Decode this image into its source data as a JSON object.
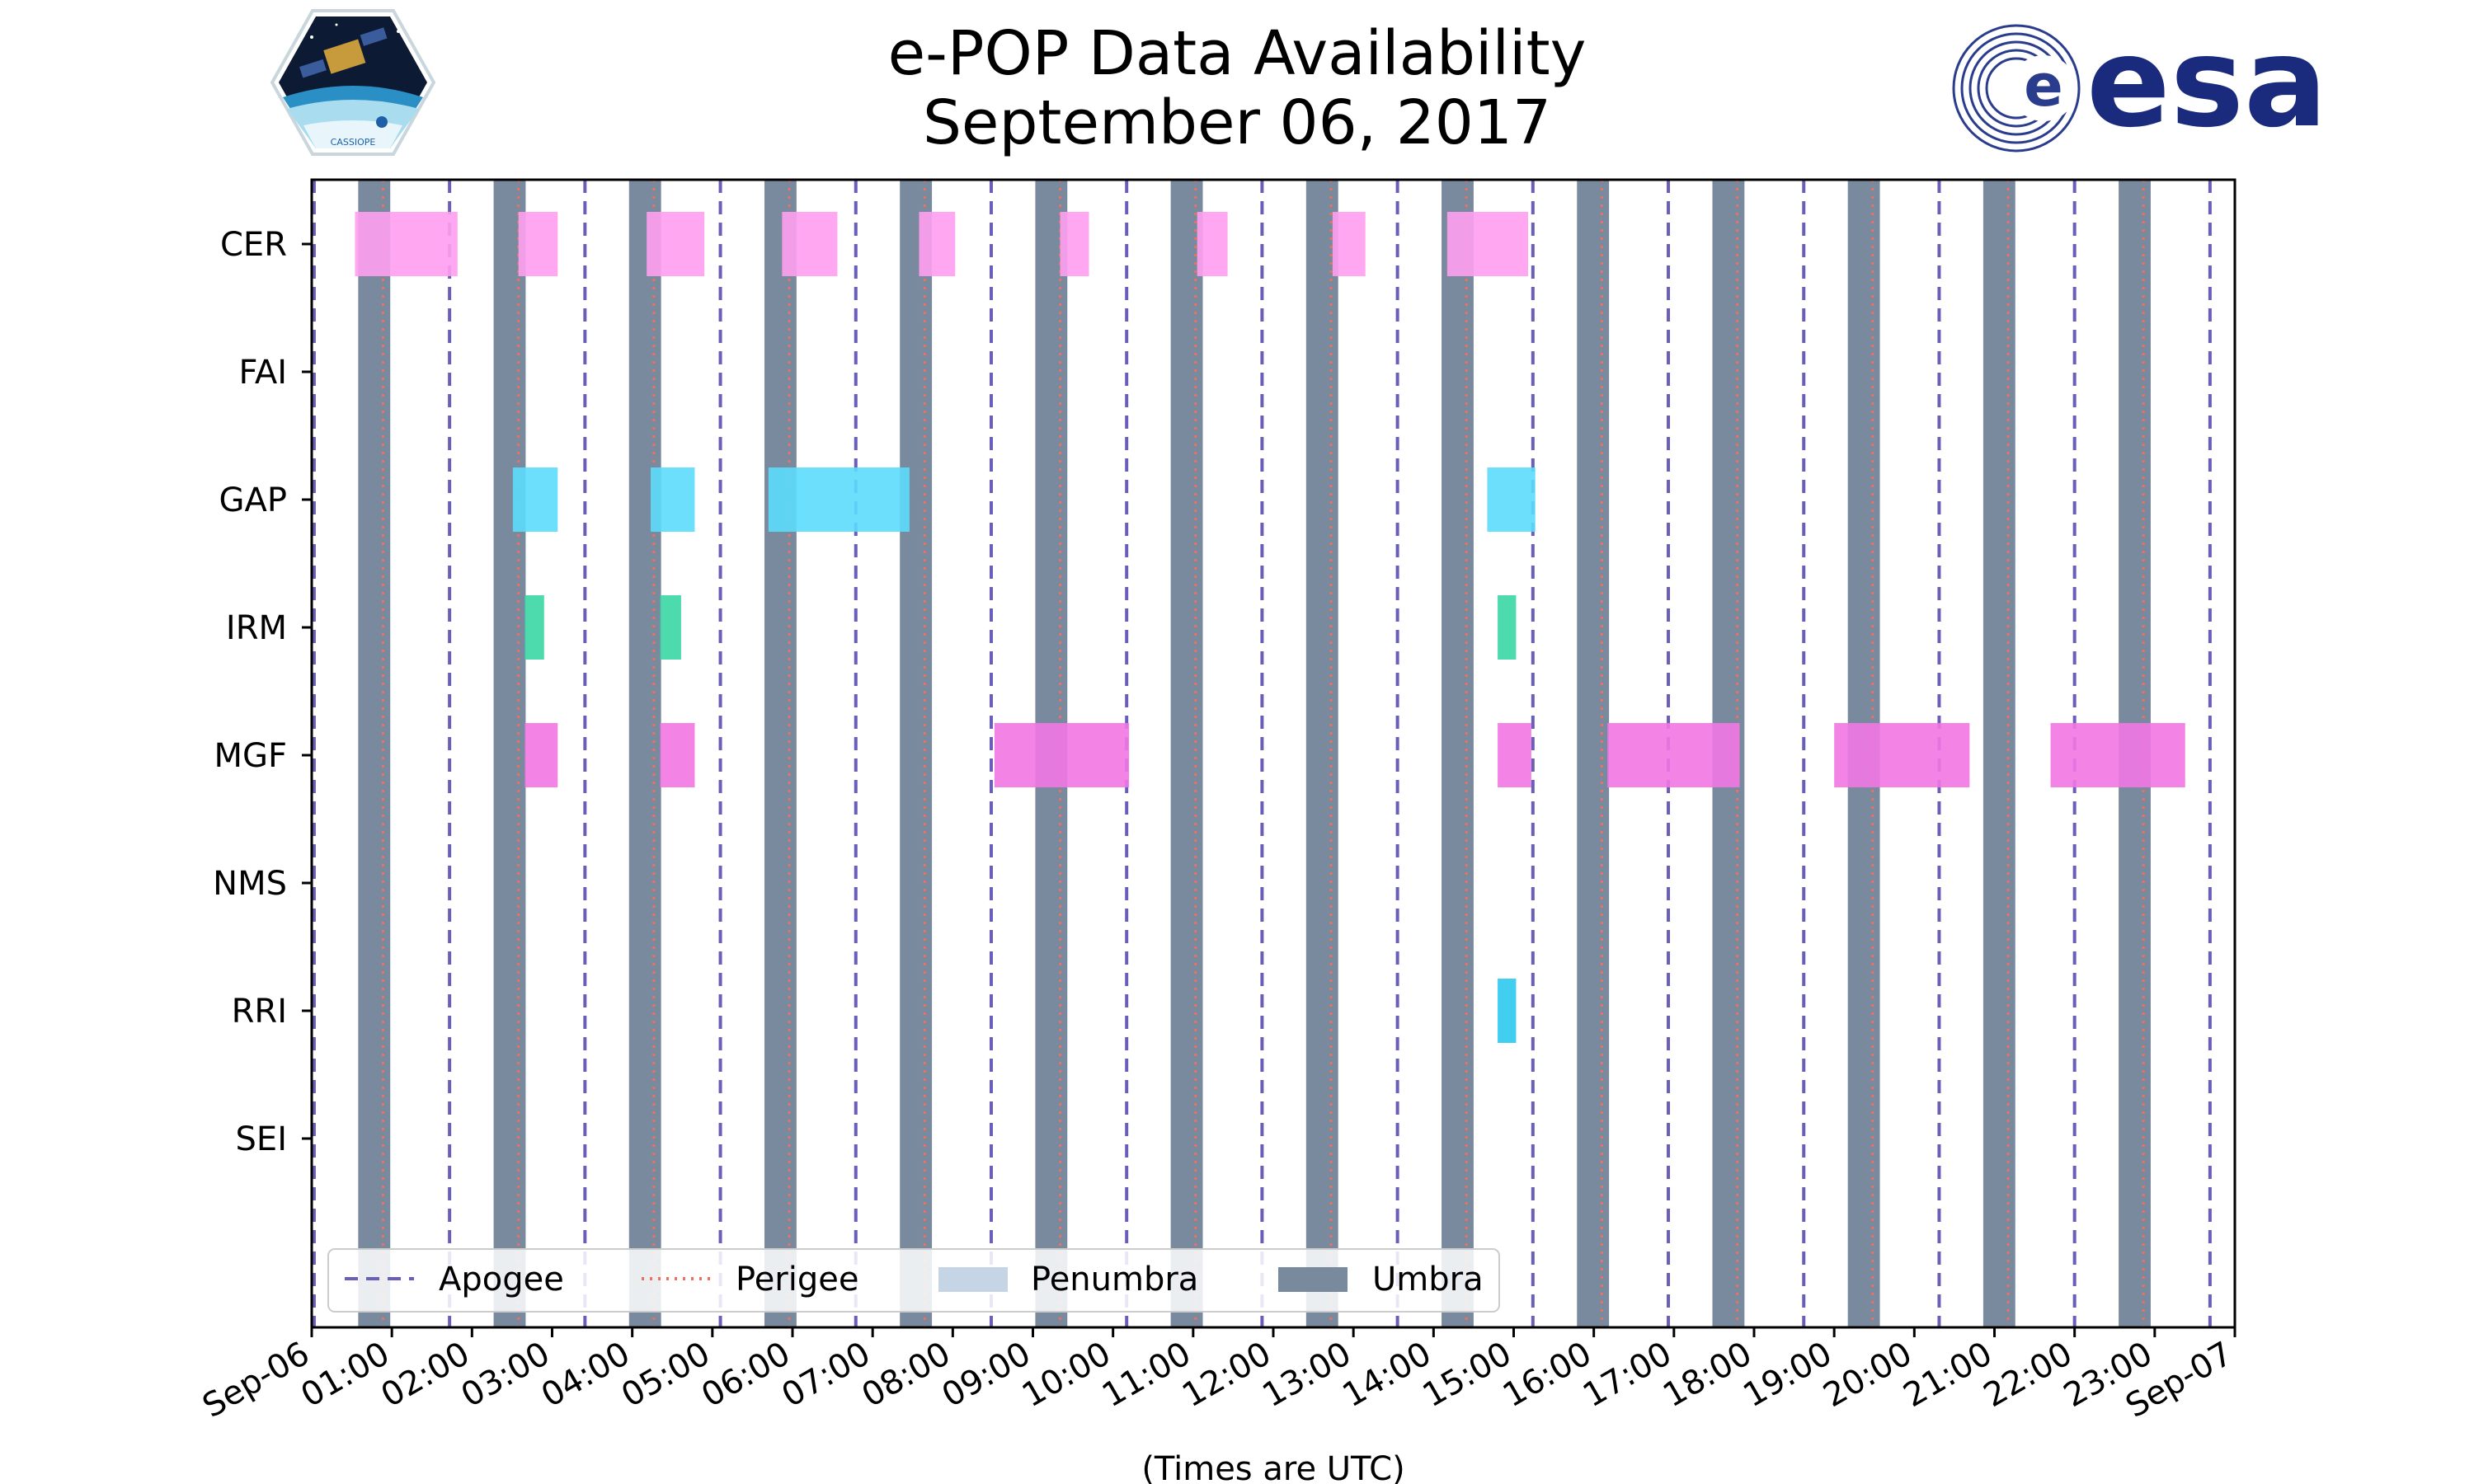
{
  "chart_data": {
    "type": "timeline",
    "title": "e-POP Data Availability",
    "subtitle": "September 06, 2017",
    "xlabel": "(Times are UTC)",
    "xlim_hours": [
      0,
      24
    ],
    "x_tick_labels": [
      "Sep-06",
      "01:00",
      "02:00",
      "03:00",
      "04:00",
      "05:00",
      "06:00",
      "07:00",
      "08:00",
      "09:00",
      "10:00",
      "11:00",
      "12:00",
      "13:00",
      "14:00",
      "15:00",
      "16:00",
      "17:00",
      "18:00",
      "19:00",
      "20:00",
      "21:00",
      "22:00",
      "23:00",
      "Sep-07"
    ],
    "instruments": [
      "CER",
      "FAI",
      "GAP",
      "IRM",
      "MGF",
      "NMS",
      "RRI",
      "SEI"
    ],
    "apogee_hours": [
      0.03,
      1.72,
      3.41,
      5.1,
      6.79,
      8.48,
      10.17,
      11.86,
      13.55,
      15.24,
      16.93,
      18.62,
      20.31,
      22.0,
      23.69
    ],
    "perigee_hours": [
      0.89,
      2.58,
      4.27,
      5.96,
      7.65,
      9.34,
      11.03,
      12.72,
      14.41,
      16.1,
      17.79,
      19.48,
      21.17,
      22.86
    ],
    "umbra_hours": [
      [
        0.58,
        0.98
      ],
      [
        2.27,
        2.67
      ],
      [
        3.96,
        4.36
      ],
      [
        5.65,
        6.05
      ],
      [
        7.34,
        7.74
      ],
      [
        9.03,
        9.43
      ],
      [
        10.72,
        11.12
      ],
      [
        12.41,
        12.81
      ],
      [
        14.1,
        14.5
      ],
      [
        15.79,
        16.19
      ],
      [
        17.48,
        17.88
      ],
      [
        19.17,
        19.57
      ],
      [
        20.86,
        21.26
      ],
      [
        22.55,
        22.95
      ]
    ],
    "availability": [
      {
        "instrument": "CER",
        "color": "#ff9ff0",
        "intervals": [
          [
            0.54,
            1.82
          ],
          [
            2.58,
            3.07
          ],
          [
            4.18,
            4.9
          ],
          [
            5.87,
            6.56
          ],
          [
            7.58,
            8.03
          ],
          [
            9.34,
            9.7
          ],
          [
            11.05,
            11.43
          ],
          [
            12.74,
            13.15
          ],
          [
            14.17,
            15.18
          ]
        ]
      },
      {
        "instrument": "FAI",
        "color": "#ff9ff0",
        "intervals": []
      },
      {
        "instrument": "GAP",
        "color": "#5bdcfb",
        "intervals": [
          [
            2.51,
            3.07
          ],
          [
            4.23,
            4.78
          ],
          [
            5.7,
            7.46
          ],
          [
            14.67,
            15.27
          ]
        ]
      },
      {
        "instrument": "IRM",
        "color": "#3ad7a5",
        "intervals": [
          [
            2.66,
            2.9
          ],
          [
            4.35,
            4.61
          ],
          [
            14.8,
            15.03
          ]
        ]
      },
      {
        "instrument": "MGF",
        "color": "#f277e3",
        "intervals": [
          [
            2.66,
            3.07
          ],
          [
            4.35,
            4.78
          ],
          [
            8.52,
            10.2
          ],
          [
            14.8,
            15.22
          ],
          [
            16.17,
            17.82
          ],
          [
            19.0,
            20.69
          ],
          [
            21.7,
            23.38
          ]
        ]
      },
      {
        "instrument": "NMS",
        "color": "#f277e3",
        "intervals": []
      },
      {
        "instrument": "RRI",
        "color": "#2ec9ef",
        "intervals": [
          [
            14.8,
            15.03
          ]
        ]
      },
      {
        "instrument": "SEI",
        "color": "#2ec9ef",
        "intervals": []
      }
    ],
    "legend": [
      {
        "label": "Apogee",
        "style": "dashed",
        "color": "#6a5fb8"
      },
      {
        "label": "Perigee",
        "style": "dotted",
        "color": "#f07060"
      },
      {
        "label": "Penumbra",
        "style": "patch",
        "color": "#c5d5e6"
      },
      {
        "label": "Umbra",
        "style": "patch",
        "color": "#7a8a9e"
      }
    ],
    "legend_position": "lower-left"
  },
  "logos": {
    "left": "CASSIOPE",
    "right": "esa"
  },
  "colors": {
    "umbra": "#7a8a9e",
    "apogee": "#6a5fb8",
    "perigee": "#f07060",
    "frame": "#000000"
  }
}
